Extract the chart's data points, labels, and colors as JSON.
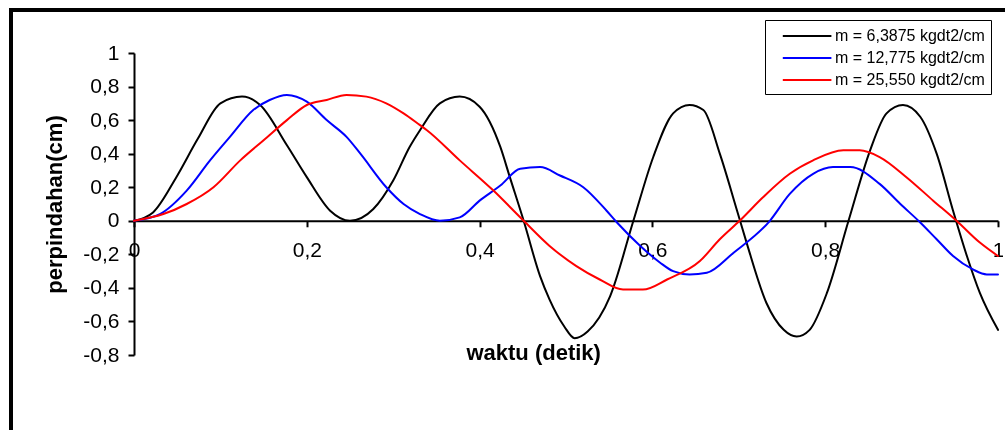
{
  "chart_data": {
    "type": "line",
    "xlabel": "waktu (detik)",
    "ylabel": "perpindahan(cm)",
    "xlim": [
      0,
      1
    ],
    "xticks": [
      0,
      {
        "value": 0.2,
        "label": "0,2"
      },
      {
        "value": 0.4,
        "label": "0,4"
      },
      {
        "value": 0.6,
        "label": "0,6"
      },
      {
        "value": 0.8,
        "label": "0,8"
      },
      1
    ],
    "ylim": [
      -0.8,
      1
    ],
    "yticks": [
      {
        "value": -0.8,
        "label": "-0,8"
      },
      {
        "value": -0.6,
        "label": "-0,6"
      },
      {
        "value": -0.4,
        "label": "-0,4"
      },
      {
        "value": -0.2,
        "label": "-0,2"
      },
      0,
      {
        "value": 0.2,
        "label": "0,2"
      },
      {
        "value": 0.4,
        "label": "0,4"
      },
      {
        "value": 0.6,
        "label": "0,6"
      },
      {
        "value": 0.8,
        "label": "0,8"
      },
      1
    ],
    "legend": "top right",
    "series": [
      {
        "name": "m = 6,3875 kgdt2/cm",
        "color": "#000000",
        "x": [
          0,
          0.022,
          0.049,
          0.074,
          0.1,
          0.125,
          0.146,
          0.177,
          0.2,
          0.227,
          0.25,
          0.277,
          0.3,
          0.319,
          0.331,
          0.354,
          0.377,
          0.4,
          0.424,
          0.435,
          0.451,
          0.47,
          0.481,
          0.498,
          0.51,
          0.525,
          0.551,
          0.578,
          0.601,
          0.624,
          0.643,
          0.659,
          0.678,
          0.698,
          0.709,
          0.732,
          0.752,
          0.767,
          0.782,
          0.802,
          0.827,
          0.852,
          0.871,
          0.89,
          0.91,
          0.929,
          0.948,
          0.964,
          0.979,
          1
        ],
        "values": [
          0,
          0.05,
          0.26,
          0.49,
          0.7,
          0.74,
          0.69,
          0.45,
          0.26,
          0.06,
          0,
          0.07,
          0.24,
          0.44,
          0.54,
          0.7,
          0.74,
          0.68,
          0.44,
          0.26,
          0,
          -0.33,
          -0.47,
          -0.63,
          -0.7,
          -0.66,
          -0.45,
          0,
          0.38,
          0.64,
          0.69,
          0.66,
          0.4,
          0.06,
          -0.13,
          -0.49,
          -0.65,
          -0.69,
          -0.65,
          -0.43,
          0,
          0.42,
          0.64,
          0.69,
          0.62,
          0.4,
          0.06,
          -0.21,
          -0.43,
          -0.65
        ]
      },
      {
        "name": "m = 12,775 kgdt2/cm",
        "color": "#0000ff",
        "x": [
          0,
          0.03,
          0.061,
          0.088,
          0.111,
          0.138,
          0.157,
          0.177,
          0.2,
          0.223,
          0.246,
          0.262,
          0.292,
          0.312,
          0.331,
          0.354,
          0.377,
          0.4,
          0.424,
          0.447,
          0.47,
          0.493,
          0.52,
          0.547,
          0.559,
          0.586,
          0.609,
          0.624,
          0.643,
          0.663,
          0.694,
          0.736,
          0.759,
          0.786,
          0.809,
          0.829,
          0.863,
          0.887,
          0.91,
          0.929,
          0.948,
          0.971,
          0.987,
          1
        ],
        "values": [
          0,
          0.04,
          0.18,
          0.36,
          0.5,
          0.66,
          0.72,
          0.75,
          0.71,
          0.6,
          0.5,
          0.4,
          0.2,
          0.1,
          0.04,
          0,
          0.02,
          0.12,
          0.21,
          0.31,
          0.32,
          0.27,
          0.2,
          0.06,
          -0.01,
          -0.15,
          -0.25,
          -0.3,
          -0.32,
          -0.31,
          -0.19,
          0,
          0.16,
          0.28,
          0.32,
          0.32,
          0.22,
          0.1,
          -0.01,
          -0.11,
          -0.21,
          -0.29,
          -0.32,
          -0.32
        ]
      },
      {
        "name": "m = 25,550 kgdt2/cm",
        "color": "#ff0000",
        "x": [
          0,
          0.034,
          0.061,
          0.092,
          0.123,
          0.15,
          0.177,
          0.2,
          0.223,
          0.246,
          0.269,
          0.292,
          0.312,
          0.331,
          0.339,
          0.377,
          0.416,
          0.451,
          0.481,
          0.512,
          0.539,
          0.566,
          0.589,
          0.617,
          0.655,
          0.678,
          0.701,
          0.728,
          0.759,
          0.786,
          0.821,
          0.84,
          0.863,
          0.894,
          0.925,
          0.952,
          0.979,
          1
        ],
        "values": [
          0,
          0.04,
          0.1,
          0.2,
          0.36,
          0.48,
          0.6,
          0.69,
          0.72,
          0.75,
          0.74,
          0.7,
          0.64,
          0.57,
          0.54,
          0.36,
          0.18,
          0,
          -0.15,
          -0.27,
          -0.35,
          -0.41,
          -0.41,
          -0.35,
          -0.24,
          -0.11,
          0,
          0.14,
          0.28,
          0.36,
          0.42,
          0.42,
          0.38,
          0.26,
          0.12,
          0,
          -0.13,
          -0.21
        ]
      }
    ]
  }
}
